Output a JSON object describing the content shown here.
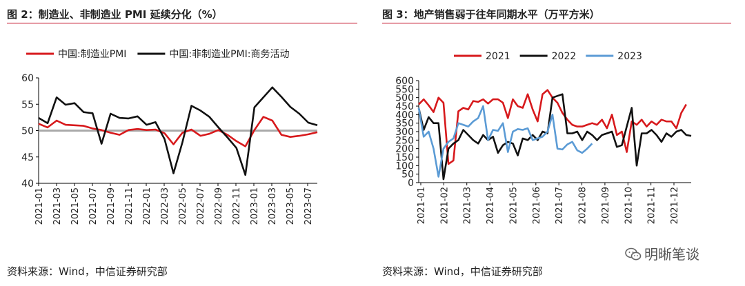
{
  "left": {
    "title": "图 2：制造业、非制造业 PMI 延续分化（%）",
    "source": "资料来源：Wind，中信证券研究部"
  },
  "right": {
    "title": "图 3：地产销售弱于往年同期水平（万平方米）",
    "source": "资料来源：Wind，中信证券研究部"
  },
  "watermark": {
    "text": "明晰笔谈",
    "icon": "wechat-icon"
  },
  "chart_data": [
    {
      "type": "line",
      "title": "",
      "xlabel": "",
      "ylabel": "",
      "ylim": [
        40,
        60
      ],
      "yticks": [
        40,
        45,
        50,
        55,
        60
      ],
      "grid": false,
      "legend_position": "top",
      "reference_line": {
        "y": 50,
        "color": "#aaaaaa"
      },
      "x": [
        "2021-01",
        "2021-02",
        "2021-03",
        "2021-04",
        "2021-05",
        "2021-06",
        "2021-07",
        "2021-08",
        "2021-09",
        "2021-10",
        "2021-11",
        "2021-12",
        "2022-01",
        "2022-02",
        "2022-03",
        "2022-04",
        "2022-05",
        "2022-06",
        "2022-07",
        "2022-08",
        "2022-09",
        "2022-10",
        "2022-11",
        "2022-12",
        "2023-01",
        "2023-02",
        "2023-03",
        "2023-04",
        "2023-05",
        "2023-06",
        "2023-07",
        "2023-08"
      ],
      "x_tick_labels": [
        "2021-01",
        "2021-03",
        "2021-05",
        "2021-07",
        "2021-09",
        "2021-11",
        "2022-01",
        "2022-03",
        "2022-05",
        "2022-07",
        "2022-09",
        "2022-11",
        "2023-01",
        "2023-03",
        "2023-05",
        "2023-07"
      ],
      "series": [
        {
          "name": "中国:制造业PMI",
          "color": "#d7191c",
          "values": [
            51.3,
            50.6,
            51.9,
            51.1,
            51.0,
            50.9,
            50.4,
            50.1,
            49.6,
            49.2,
            50.1,
            50.3,
            50.1,
            50.2,
            49.5,
            47.4,
            49.6,
            50.2,
            49.0,
            49.4,
            50.1,
            49.2,
            48.0,
            47.0,
            50.1,
            52.6,
            51.9,
            49.2,
            48.8,
            49.0,
            49.3,
            49.7
          ]
        },
        {
          "name": "中国:非制造业PMI:商务活动",
          "color": "#111111",
          "values": [
            52.4,
            51.4,
            56.3,
            54.9,
            55.2,
            53.5,
            53.3,
            47.5,
            53.2,
            52.4,
            52.3,
            52.7,
            51.1,
            51.6,
            48.4,
            41.9,
            47.8,
            54.7,
            53.8,
            52.6,
            50.6,
            48.7,
            46.7,
            41.6,
            54.4,
            56.3,
            58.2,
            56.4,
            54.5,
            53.2,
            51.5,
            51.0
          ]
        }
      ]
    },
    {
      "type": "line",
      "title": "",
      "xlabel": "",
      "ylabel": "",
      "ylim": [
        0,
        600
      ],
      "yticks": [
        0,
        50,
        100,
        150,
        200,
        250,
        300,
        350,
        400,
        450,
        500,
        550,
        600
      ],
      "grid": false,
      "legend_position": "top",
      "x_tick_labels": [
        "2021-01",
        "2021-02",
        "2021-03",
        "2021-04",
        "2021-05",
        "2021-06",
        "2021-07",
        "2021-08",
        "2021-09",
        "2021-10",
        "2021-11",
        "2021-12"
      ],
      "series": [
        {
          "name": "2021",
          "color": "#d7191c",
          "values": [
            460,
            490,
            455,
            415,
            500,
            470,
            110,
            130,
            420,
            440,
            430,
            480,
            475,
            490,
            465,
            490,
            490,
            470,
            380,
            490,
            450,
            440,
            520,
            430,
            360,
            520,
            545,
            500,
            470,
            410,
            370,
            340,
            330,
            330,
            340,
            350,
            340,
            370,
            320,
            400,
            280,
            300,
            180,
            360,
            340,
            370,
            330,
            360,
            340,
            370,
            360,
            360,
            320,
            410,
            460
          ]
        },
        {
          "name": "2022",
          "color": "#111111",
          "values": [
            440,
            310,
            385,
            350,
            350,
            20,
            200,
            230,
            250,
            310,
            280,
            250,
            230,
            280,
            250,
            270,
            175,
            220,
            240,
            230,
            160,
            260,
            250,
            280,
            250,
            300,
            290,
            500,
            510,
            520,
            290,
            290,
            300,
            250,
            300,
            280,
            250,
            280,
            290,
            300,
            210,
            220,
            330,
            440,
            100,
            290,
            290,
            310,
            280,
            240,
            290,
            270,
            300,
            310,
            280,
            275
          ]
        },
        {
          "name": "2023",
          "color": "#5b9bd5",
          "values": [
            440,
            270,
            300,
            200,
            35,
            200,
            240,
            260,
            350,
            340,
            330,
            360,
            380,
            450,
            250,
            310,
            305,
            350,
            180,
            300,
            315,
            310,
            320,
            250,
            260,
            270,
            300,
            400,
            200,
            195,
            225,
            240,
            190,
            175,
            200,
            230
          ]
        }
      ]
    }
  ]
}
